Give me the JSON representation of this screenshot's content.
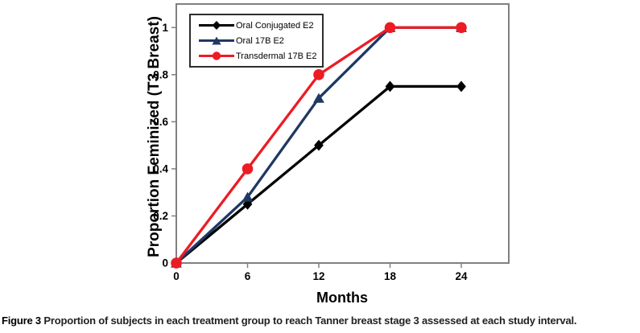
{
  "figure": {
    "caption_label": "Figure 3",
    "caption_text": "Proportion of subjects in each treatment group to reach Tanner breast stage 3 assessed at each study interval."
  },
  "chart_data": {
    "type": "line",
    "title": "",
    "xlabel": "Months",
    "ylabel": "Proportion Feminized (T3 Breast)",
    "x": [
      0,
      6,
      12,
      18,
      24
    ],
    "xtick_labels": [
      "0",
      "6",
      "12",
      "18",
      "24"
    ],
    "yticks": [
      0,
      0.2,
      0.4,
      0.6,
      0.8,
      1
    ],
    "ytick_labels": [
      "0",
      "0.2",
      "0.4",
      "0.6",
      "0.8",
      "1"
    ],
    "xlim": [
      0,
      28
    ],
    "ylim": [
      0,
      1.1
    ],
    "grid": false,
    "legend_position": "top-left-inside",
    "axis_color": "#808080",
    "text_color": "#000000",
    "series": [
      {
        "name": "Oral Conjugated E2",
        "marker": "diamond",
        "color": "#000000",
        "values": [
          0,
          0.25,
          0.5,
          0.75,
          0.75
        ]
      },
      {
        "name": "Oral 17B E2",
        "marker": "triangle",
        "color": "#1F3864",
        "values": [
          0,
          0.28,
          0.7,
          1,
          1
        ]
      },
      {
        "name": "Transdermal 17B E2",
        "marker": "circle",
        "color": "#ED1C24",
        "values": [
          0,
          0.4,
          0.8,
          1,
          1
        ]
      }
    ]
  }
}
